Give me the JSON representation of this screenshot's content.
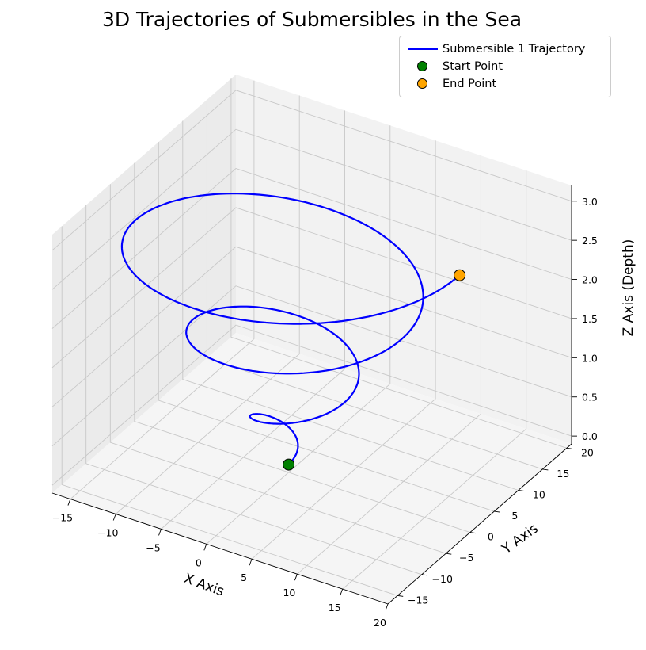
{
  "chart_data": {
    "type": "line3d",
    "title": "3D Trajectories of Submersibles in the Sea",
    "xlabel": "X Axis",
    "ylabel": "Y Axis",
    "zlabel": "Z Axis (Depth)",
    "xlim": [
      -17,
      20
    ],
    "ylim": [
      -17,
      21
    ],
    "zlim": [
      -0.1,
      3.2
    ],
    "xticks": [
      -15,
      -10,
      -5,
      0,
      5,
      10,
      15,
      20
    ],
    "yticks": [
      -15,
      -10,
      -5,
      0,
      5,
      10,
      15,
      20
    ],
    "zticks": [
      0.0,
      0.5,
      1.0,
      1.5,
      2.0,
      2.5,
      3.0
    ],
    "xtick_labels": [
      "−15",
      "−10",
      "−5",
      "0",
      "5",
      "10",
      "15",
      "20"
    ],
    "ytick_labels": [
      "−15",
      "−10",
      "−5",
      "0",
      "5",
      "10",
      "15",
      "20"
    ],
    "ztick_labels": [
      "0.0",
      "0.5",
      "1.0",
      "1.5",
      "2.0",
      "2.5",
      "3.0"
    ],
    "grid": true,
    "legend_position": "top-right",
    "series": [
      {
        "name": "Submersible 1 Trajectory",
        "color": "#0000ff",
        "parametric": "x = t*cos(t), y = t*sin(t), z = t/6",
        "t_range": [
          0,
          18.85
        ]
      }
    ],
    "markers": [
      {
        "name": "Start Point",
        "color": "#008000",
        "x": 0,
        "y": 0,
        "z": 0
      },
      {
        "name": "End Point",
        "color": "#ffa500",
        "x": 18.85,
        "y": 0,
        "z": 3.14
      }
    ]
  }
}
